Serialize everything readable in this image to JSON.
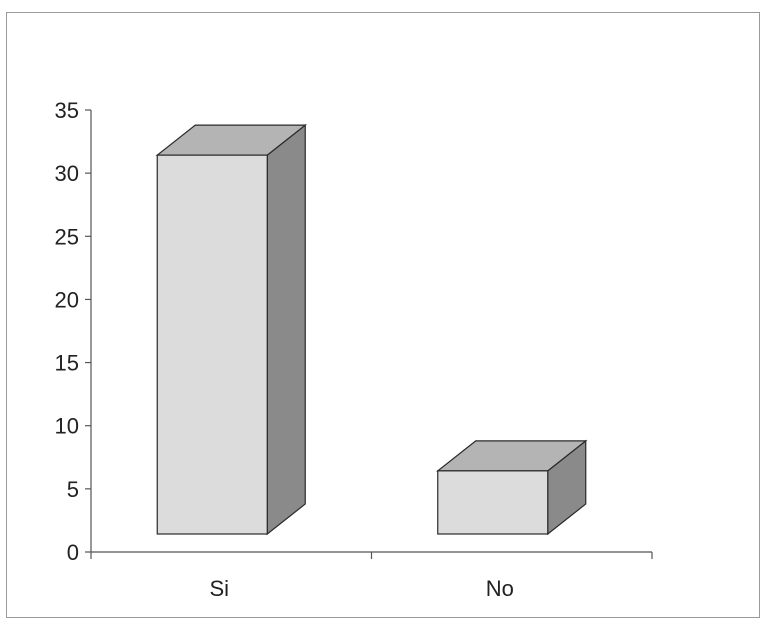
{
  "chart_data": {
    "type": "bar",
    "style": "3d-column",
    "categories": [
      "Si",
      "No"
    ],
    "values": [
      30,
      5
    ],
    "ylim": [
      0,
      35
    ],
    "yticks": [
      0,
      5,
      10,
      15,
      20,
      25,
      30,
      35
    ],
    "title": "",
    "xlabel": "",
    "ylabel": "",
    "grid": false,
    "legend": "none",
    "colors": {
      "front": "#dcdcdc",
      "top": "#b4b4b4",
      "side": "#8a8a8a",
      "edge": "#2a2a2a",
      "axis": "#555555"
    }
  }
}
